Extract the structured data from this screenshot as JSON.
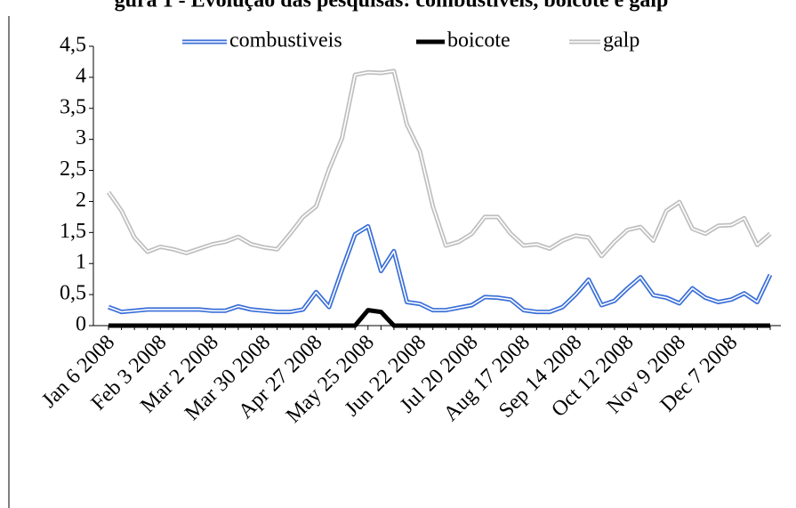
{
  "chart_data": {
    "type": "line",
    "title": "gura 1 - Evolução das pesquisas: combustíveis, boicote e galp",
    "categories": [
      "Jan 6 2008",
      null,
      null,
      null,
      "Feb 3 2008",
      null,
      null,
      null,
      "Mar 2 2008",
      null,
      null,
      null,
      "Mar 30 2008",
      null,
      null,
      null,
      "Apr 27 2008",
      null,
      null,
      null,
      "May 25 2008",
      null,
      null,
      null,
      "Jun 22 2008",
      null,
      null,
      null,
      "Jul 20 2008",
      null,
      null,
      null,
      "Aug 17 2008",
      null,
      null,
      null,
      "Sep 14 2008",
      null,
      null,
      null,
      "Oct 12 2008",
      null,
      null,
      null,
      "Nov 9 2008",
      null,
      null,
      null,
      "Dec 7 2008",
      null,
      null,
      null
    ],
    "series": [
      {
        "name": "combustiveis",
        "color": "#3a6fd8",
        "values": [
          0.3,
          0.22,
          0.24,
          0.26,
          0.26,
          0.26,
          0.26,
          0.26,
          0.24,
          0.24,
          0.31,
          0.26,
          0.24,
          0.22,
          0.22,
          0.26,
          0.54,
          0.3,
          0.9,
          1.47,
          1.6,
          0.88,
          1.2,
          0.38,
          0.35,
          0.25,
          0.25,
          0.29,
          0.33,
          0.46,
          0.45,
          0.42,
          0.25,
          0.22,
          0.22,
          0.3,
          0.5,
          0.74,
          0.33,
          0.4,
          0.6,
          0.78,
          0.49,
          0.45,
          0.36,
          0.6,
          0.45,
          0.38,
          0.42,
          0.52,
          0.38,
          0.82
        ]
      },
      {
        "name": "boicote",
        "color": "#000000",
        "values": [
          0,
          0,
          0,
          0,
          0,
          0,
          0,
          0,
          0,
          0,
          0,
          0,
          0,
          0,
          0,
          0,
          0,
          0,
          0,
          0,
          0.25,
          0.22,
          0,
          0,
          0,
          0,
          0,
          0,
          0,
          0,
          0,
          0,
          0,
          0,
          0,
          0,
          0,
          0,
          0,
          0,
          0,
          0,
          0,
          0,
          0,
          0,
          0,
          0,
          0,
          0,
          0,
          0
        ]
      },
      {
        "name": "galp",
        "color": "#bfbfbf",
        "values": [
          2.15,
          1.85,
          1.42,
          1.19,
          1.27,
          1.23,
          1.17,
          1.24,
          1.31,
          1.35,
          1.43,
          1.31,
          1.26,
          1.23,
          1.48,
          1.75,
          1.92,
          2.52,
          3.02,
          4.04,
          4.08,
          4.07,
          4.1,
          3.24,
          2.81,
          1.92,
          1.29,
          1.35,
          1.48,
          1.75,
          1.75,
          1.48,
          1.29,
          1.31,
          1.24,
          1.37,
          1.45,
          1.42,
          1.12,
          1.35,
          1.54,
          1.59,
          1.37,
          1.85,
          1.99,
          1.56,
          1.48,
          1.61,
          1.62,
          1.73,
          1.3,
          1.48
        ]
      }
    ],
    "ylim": [
      0,
      4.5
    ],
    "yticks": [
      0,
      {
        "value": 0.5,
        "label": "0,5"
      },
      1,
      {
        "value": 1.5,
        "label": "1,5"
      },
      2,
      {
        "value": 2.5,
        "label": "2,5"
      },
      3,
      {
        "value": 3.5,
        "label": "3,5"
      },
      4,
      {
        "value": 4.5,
        "label": "4,5"
      }
    ],
    "grid": false
  }
}
